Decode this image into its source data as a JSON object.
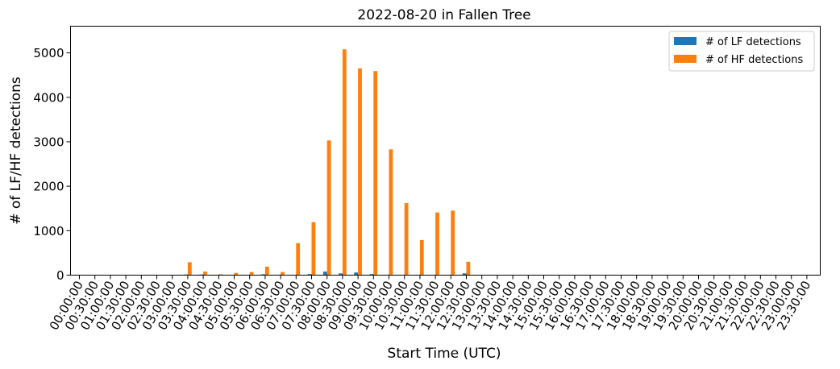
{
  "chart_data": {
    "type": "bar",
    "title": "2022-08-20 in Fallen Tree",
    "xlabel": "Start Time (UTC)",
    "ylabel": "# of LF/HF detections",
    "ylim": [
      0,
      5600
    ],
    "yticks": [
      0,
      1000,
      2000,
      3000,
      4000,
      5000
    ],
    "grid": false,
    "legend_position": "top-right",
    "categories": [
      "00:00:00",
      "00:30:00",
      "01:00:00",
      "01:30:00",
      "02:00:00",
      "02:30:00",
      "03:00:00",
      "03:30:00",
      "04:00:00",
      "04:30:00",
      "05:00:00",
      "05:30:00",
      "06:00:00",
      "06:30:00",
      "07:00:00",
      "07:30:00",
      "08:00:00",
      "08:30:00",
      "09:00:00",
      "09:30:00",
      "10:00:00",
      "10:30:00",
      "11:00:00",
      "11:30:00",
      "12:00:00",
      "12:30:00",
      "13:00:00",
      "13:30:00",
      "14:00:00",
      "14:30:00",
      "15:00:00",
      "15:30:00",
      "16:00:00",
      "16:30:00",
      "17:00:00",
      "17:30:00",
      "18:00:00",
      "18:30:00",
      "19:00:00",
      "19:30:00",
      "20:00:00",
      "20:30:00",
      "21:00:00",
      "21:30:00",
      "22:00:00",
      "22:30:00",
      "23:00:00",
      "23:30:00"
    ],
    "series": [
      {
        "name": "# of LF detections",
        "color": "#1f77b4",
        "values": [
          0,
          0,
          0,
          0,
          0,
          0,
          0,
          15,
          15,
          5,
          0,
          10,
          20,
          10,
          5,
          25,
          80,
          40,
          60,
          25,
          10,
          0,
          10,
          0,
          0,
          40,
          0,
          0,
          0,
          0,
          0,
          0,
          0,
          0,
          0,
          0,
          0,
          0,
          0,
          0,
          0,
          0,
          0,
          0,
          0,
          0,
          0,
          0
        ]
      },
      {
        "name": "# of HF detections",
        "color": "#ff7f0e",
        "values": [
          0,
          0,
          0,
          0,
          0,
          0,
          0,
          290,
          80,
          20,
          50,
          70,
          190,
          70,
          720,
          1190,
          3030,
          5080,
          4650,
          4590,
          2830,
          1620,
          790,
          1410,
          1450,
          300,
          0,
          0,
          0,
          0,
          0,
          0,
          0,
          0,
          0,
          0,
          0,
          0,
          0,
          0,
          0,
          0,
          0,
          0,
          0,
          0,
          0,
          0
        ]
      }
    ]
  }
}
